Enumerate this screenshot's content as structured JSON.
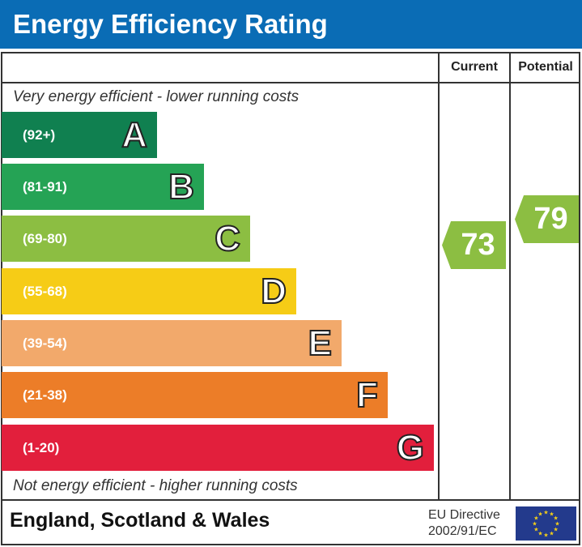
{
  "title": "Energy Efficiency Rating",
  "columns": {
    "current": "Current",
    "potential": "Potential"
  },
  "top_note": "Very energy efficient - lower running costs",
  "bottom_note": "Not energy efficient - higher running costs",
  "footer": {
    "region": "England, Scotland & Wales",
    "directive_line1": "EU Directive",
    "directive_line2": "2002/91/EC",
    "flag_icon": "eu-flag-icon"
  },
  "chart_data": {
    "type": "bar",
    "categories": [
      "A",
      "B",
      "C",
      "D",
      "E",
      "F",
      "G"
    ],
    "ranges": [
      "(92+)",
      "(81-91)",
      "(69-80)",
      "(55-68)",
      "(39-54)",
      "(21-38)",
      "(1-20)"
    ],
    "colors": [
      "#108050",
      "#25a355",
      "#8cbe42",
      "#f6cc16",
      "#f2a96b",
      "#ec7d28",
      "#e21f3c"
    ],
    "current": {
      "value": "73",
      "band": "C",
      "color": "#8cbe42"
    },
    "potential": {
      "value": "79",
      "band": "C",
      "color": "#8cbe42"
    }
  }
}
